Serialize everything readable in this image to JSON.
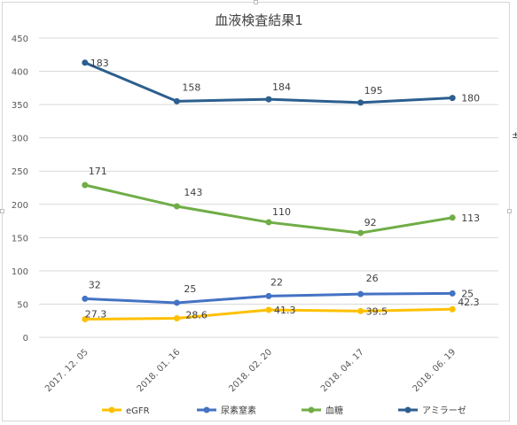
{
  "chart_data": {
    "type": "line",
    "title": "血液検査結果1",
    "categories": [
      "2017. 12. 05",
      "2018. 01. 16",
      "2018. 02. 20",
      "2018. 04. 17",
      "2018. 06. 19"
    ],
    "ylim": [
      0,
      450
    ],
    "yticks": [
      0,
      50,
      100,
      150,
      200,
      250,
      300,
      350,
      400,
      450
    ],
    "grid": true,
    "legend_position": "bottom",
    "series": [
      {
        "name": "eGFR",
        "color": "#FFC000",
        "values": [
          27.3,
          28.6,
          41.3,
          39.5,
          42.3
        ],
        "labels": [
          "27.3",
          "28.6",
          "41.3",
          "39.5",
          "42.3"
        ],
        "y_plot": [
          27.3,
          28.6,
          41.3,
          39.5,
          42.3
        ]
      },
      {
        "name": "尿素窒素",
        "color": "#4472C4",
        "values": [
          32,
          25,
          22,
          26,
          25
        ],
        "labels": [
          "32",
          "25",
          "22",
          "26",
          "25"
        ],
        "y_plot": [
          58,
          52,
          62,
          65,
          66
        ]
      },
      {
        "name": "血糖",
        "color": "#70AD47",
        "values": [
          171,
          143,
          110,
          92,
          113
        ],
        "labels": [
          "171",
          "143",
          "110",
          "92",
          "113"
        ],
        "y_plot": [
          229,
          197,
          173,
          157,
          180
        ]
      },
      {
        "name": "アミラーゼ",
        "color": "#2C5F8E",
        "values": [
          183,
          158,
          184,
          195,
          180
        ],
        "labels": [
          "183",
          "158",
          "184",
          "195",
          "180"
        ],
        "y_plot": [
          413,
          355,
          358,
          353,
          360
        ]
      }
    ]
  }
}
